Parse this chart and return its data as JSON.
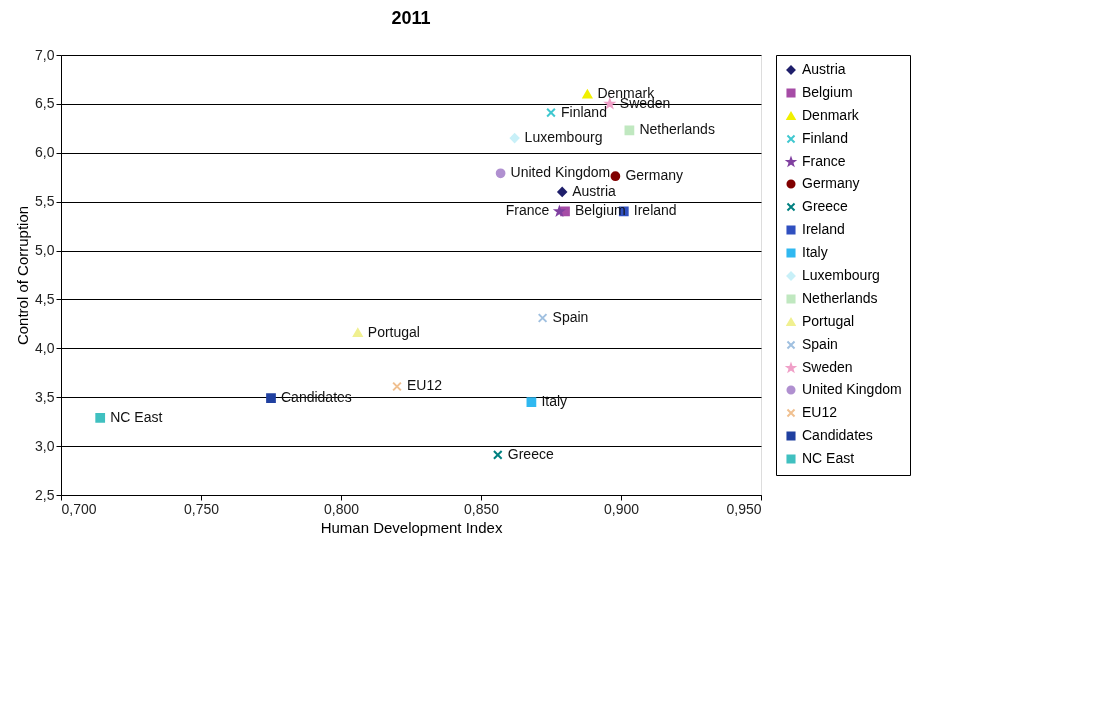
{
  "chart_data": {
    "type": "scatter",
    "title": "2011",
    "xlabel": "Human Development Index",
    "ylabel": "Control of Corruption",
    "xlim": [
      0.7,
      0.95
    ],
    "xticks": [
      {
        "value": 0.7,
        "label": "0,700"
      },
      {
        "value": 0.75,
        "label": "0,750"
      },
      {
        "value": 0.8,
        "label": "0,800"
      },
      {
        "value": 0.85,
        "label": "0,850"
      },
      {
        "value": 0.9,
        "label": "0,900"
      },
      {
        "value": 0.95,
        "label": "0,950"
      }
    ],
    "ylim": [
      2.5,
      7.0
    ],
    "yticks": [
      {
        "value": 2.5,
        "label": "2,5"
      },
      {
        "value": 3.0,
        "label": "3,0"
      },
      {
        "value": 3.5,
        "label": "3,5"
      },
      {
        "value": 4.0,
        "label": "4,0"
      },
      {
        "value": 4.5,
        "label": "4,5"
      },
      {
        "value": 5.0,
        "label": "5,0"
      },
      {
        "value": 5.5,
        "label": "5,5"
      },
      {
        "value": 6.0,
        "label": "6,0"
      },
      {
        "value": 6.5,
        "label": "6,5"
      },
      {
        "value": 7.0,
        "label": "7,0"
      }
    ],
    "grid": "y",
    "legend": "right",
    "series": [
      {
        "name": "Austria",
        "color": "#1f1f6b",
        "marker": "diamond",
        "x": [
          0.879
        ],
        "values": [
          5.6
        ]
      },
      {
        "name": "Belgium",
        "color": "#a64ca6",
        "marker": "square",
        "x": [
          0.88
        ],
        "values": [
          5.4
        ]
      },
      {
        "name": "Denmark",
        "color": "#f0f000",
        "marker": "triangle",
        "x": [
          0.888
        ],
        "values": [
          6.6
        ]
      },
      {
        "name": "Finland",
        "color": "#40c8d0",
        "marker": "cross",
        "x": [
          0.875
        ],
        "values": [
          6.41
        ]
      },
      {
        "name": "France",
        "color": "#8040a0",
        "marker": "star",
        "x": [
          0.878
        ],
        "values": [
          5.4
        ]
      },
      {
        "name": "Germany",
        "color": "#800000",
        "marker": "circle",
        "x": [
          0.898
        ],
        "values": [
          5.76
        ]
      },
      {
        "name": "Greece",
        "color": "#008080",
        "marker": "cross",
        "x": [
          0.856
        ],
        "values": [
          2.91
        ]
      },
      {
        "name": "Ireland",
        "color": "#3050c0",
        "marker": "square",
        "x": [
          0.901
        ],
        "values": [
          5.4
        ]
      },
      {
        "name": "Italy",
        "color": "#30b8f0",
        "marker": "square",
        "x": [
          0.868
        ],
        "values": [
          3.45
        ]
      },
      {
        "name": "Luxembourg",
        "color": "#c8f0f8",
        "marker": "diamond",
        "x": [
          0.862
        ],
        "values": [
          6.15
        ]
      },
      {
        "name": "Netherlands",
        "color": "#c0e8c0",
        "marker": "square",
        "x": [
          0.903
        ],
        "values": [
          6.23
        ]
      },
      {
        "name": "Portugal",
        "color": "#f0f090",
        "marker": "triangle",
        "x": [
          0.806
        ],
        "values": [
          4.16
        ]
      },
      {
        "name": "Spain",
        "color": "#a0c0e0",
        "marker": "cross",
        "x": [
          0.872
        ],
        "values": [
          4.31
        ]
      },
      {
        "name": "Sweden",
        "color": "#f0a0c8",
        "marker": "star",
        "x": [
          0.896
        ],
        "values": [
          6.5
        ]
      },
      {
        "name": "United Kingdom",
        "color": "#b090d0",
        "marker": "circle",
        "x": [
          0.857
        ],
        "values": [
          5.79
        ]
      },
      {
        "name": "EU12",
        "color": "#f0c090",
        "marker": "cross",
        "x": [
          0.82
        ],
        "values": [
          3.61
        ]
      },
      {
        "name": "Candidates",
        "color": "#2040a0",
        "marker": "square",
        "x": [
          0.775
        ],
        "values": [
          3.49
        ]
      },
      {
        "name": "NC East",
        "color": "#40c0c0",
        "marker": "square",
        "x": [
          0.714
        ],
        "values": [
          3.29
        ]
      }
    ]
  }
}
